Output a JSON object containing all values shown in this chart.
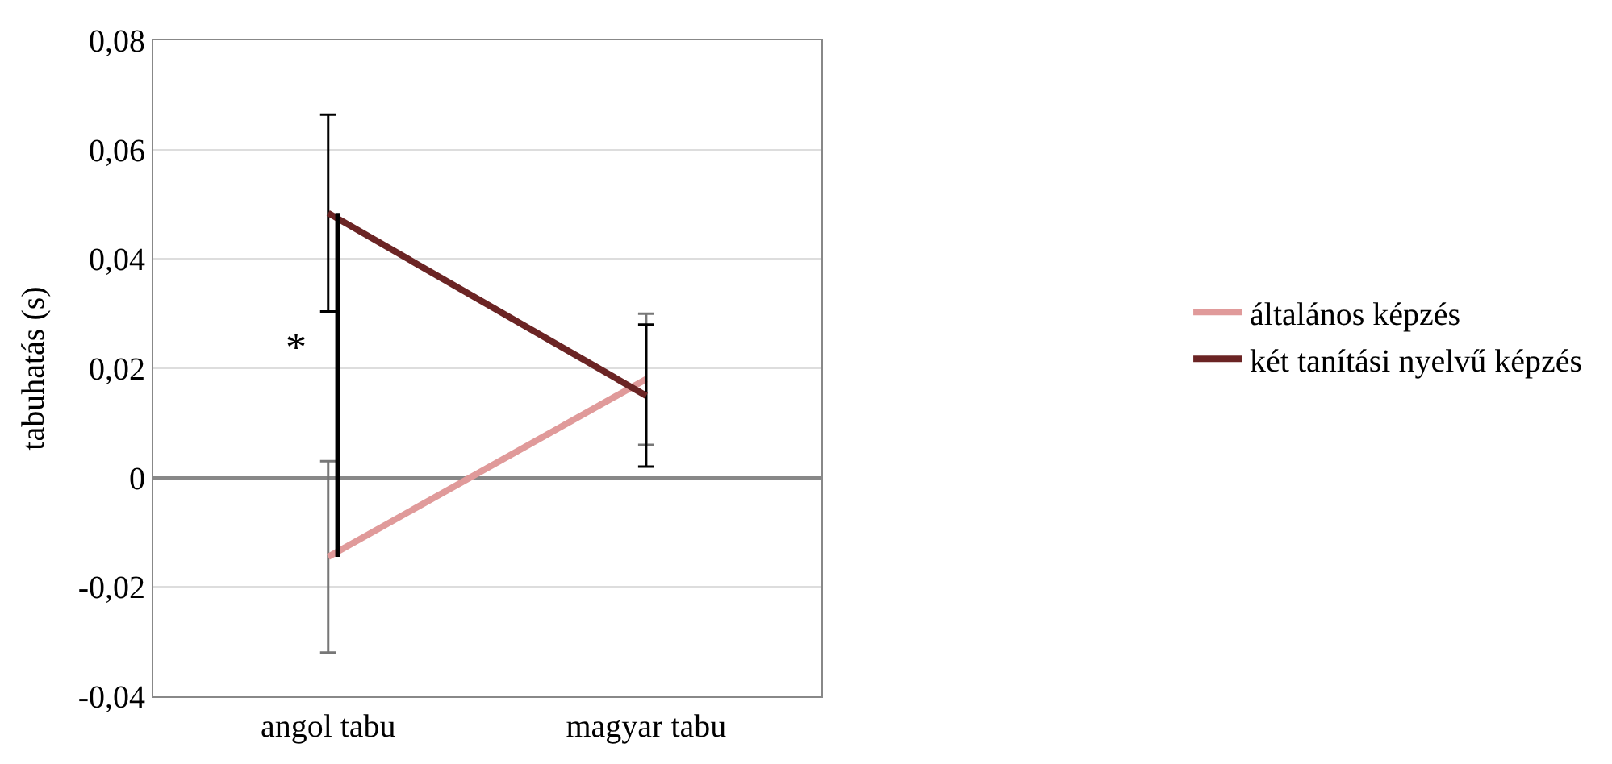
{
  "chart_data": {
    "type": "line",
    "ylabel": "tabuhatás (s)",
    "categories": [
      "angol tabu",
      "magyar tabu"
    ],
    "series": [
      {
        "name": "általános képzés",
        "color": "#e09a9a",
        "values": [
          -0.0145,
          0.018
        ],
        "errors": [
          0.0175,
          0.012
        ]
      },
      {
        "name": "két tanítási nyelvű képzés",
        "color": "#6b2424",
        "values": [
          0.0484,
          0.015
        ],
        "errors": [
          0.018,
          0.013
        ]
      }
    ],
    "annotations": [
      "*"
    ],
    "ylim": [
      -0.04,
      0.08
    ],
    "yticks": [
      {
        "value": -0.04,
        "label": "-0,04"
      },
      {
        "value": -0.02,
        "label": "-0,02"
      },
      {
        "value": 0,
        "label": "0"
      },
      {
        "value": 0.02,
        "label": "0,02"
      },
      {
        "value": 0.04,
        "label": "0,04"
      },
      {
        "value": 0.06,
        "label": "0,06"
      },
      {
        "value": 0.08,
        "label": "0,08"
      }
    ],
    "grid": "y",
    "legend": "right",
    "marker": "none",
    "line_style": "solid"
  }
}
